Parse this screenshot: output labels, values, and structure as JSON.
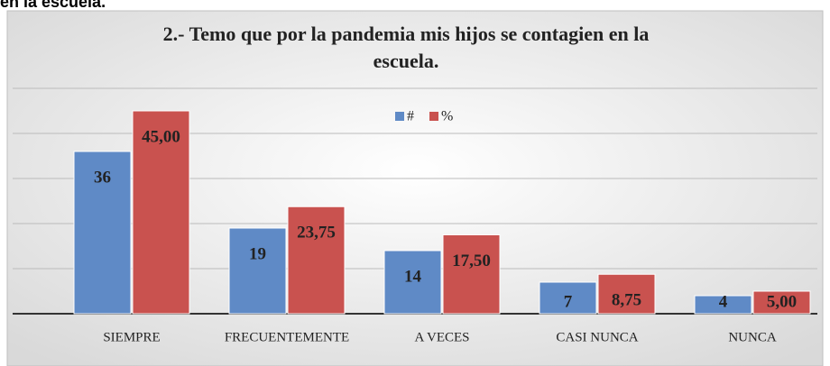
{
  "header": {
    "text": "en la escuela."
  },
  "chart_data": {
    "type": "bar",
    "title": "2.- Temo que por la pandemia mis hijos se contagien en la escuela.",
    "title_lines": [
      "2.- Temo que por la pandemia mis hijos se contagien en la",
      "escuela."
    ],
    "categories": [
      "SIEMPRE",
      "FRECUENTEMENTE",
      "A VECES",
      "CASI NUNCA",
      "NUNCA"
    ],
    "series": [
      {
        "name": "#",
        "color": "#5f8ac6",
        "values": [
          36,
          19,
          14,
          7,
          4
        ]
      },
      {
        "name": "%",
        "color": "#c9524f",
        "values": [
          45,
          23.75,
          17.5,
          8.75,
          5
        ],
        "value_labels": [
          "45,00",
          "23,75",
          "17,50",
          "8,75",
          "5,00"
        ]
      }
    ],
    "ylim": [
      0,
      50
    ],
    "yticks": [
      0,
      10,
      20,
      30,
      40,
      50
    ],
    "grid": true,
    "legend": "top"
  }
}
